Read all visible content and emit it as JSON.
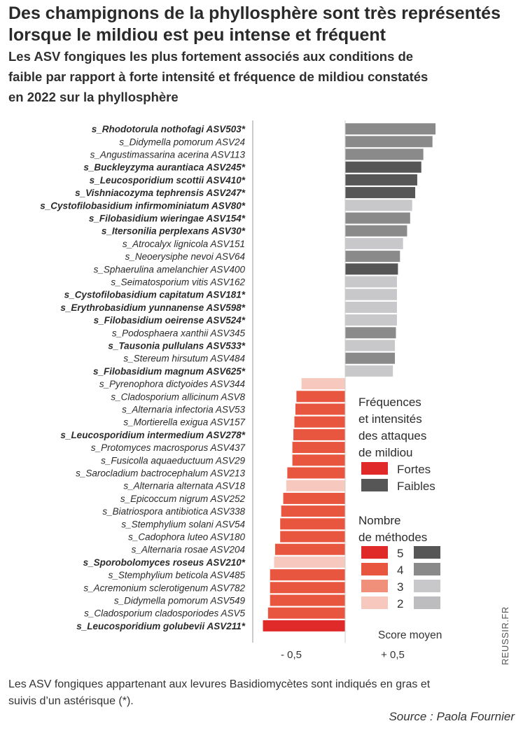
{
  "header": {
    "title": "Des champignons de la phyllosphère sont très représentés lorsque le mildiou est peu intense et fréquent",
    "subtitle": "Les ASV fongiques les plus fortement associés aux conditions de faible par rapport à forte intensité et fréquence de mildiou constatés en 2022 sur la phyllosphère"
  },
  "footer": {
    "note": "Les ASV fongiques appartenant aux levures Basidiomycètes sont indiqués en gras et suivis d’un astérisque (*).",
    "source": "Source : Paola Fournier",
    "credit": "REUSSIR.FR"
  },
  "colors": {
    "fortes": {
      "5": "#e02a2a",
      "4": "#e9563f",
      "3": "#f08f7a",
      "2": "#f7c8bd"
    },
    "faibles": {
      "5": "#565656",
      "4": "#8a8a8a",
      "3": "#c8c8cb",
      "2": "#bdbdc0"
    }
  },
  "chart_data": {
    "type": "bar",
    "orientation": "horizontal",
    "title": "Les ASV fongiques les plus fortement associés aux conditions de faible par rapport à forte intensité et fréquence de mildiou constatés en 2022 sur la phyllosphère",
    "xlabel": "Score moyen",
    "xticks": [
      -0.5,
      0.5
    ],
    "xtick_labels": [
      "- 0,5",
      "+ 0,5"
    ],
    "xlim": [
      -1.0,
      1.05
    ],
    "legend": {
      "title1": "Fréquences et intensités des attaques de mildiou",
      "fortes_label": "Fortes",
      "faibles_label": "Faibles",
      "title2": "Nombre de méthodes",
      "levels": [
        5,
        4,
        3,
        2
      ]
    },
    "items": [
      {
        "label": "s_Rhodotorula nothofagi ASV503*",
        "value": 0.89,
        "group": "faibles",
        "methods": 4,
        "bold": true
      },
      {
        "label": "s_Didymella pomorum ASV24",
        "value": 0.86,
        "group": "faibles",
        "methods": 4,
        "bold": false
      },
      {
        "label": "s_Angustimassarina acerina ASV113",
        "value": 0.77,
        "group": "faibles",
        "methods": 4,
        "bold": false
      },
      {
        "label": "s_Buckleyzyma aurantiaca ASV245*",
        "value": 0.75,
        "group": "faibles",
        "methods": 5,
        "bold": true
      },
      {
        "label": "s_Leucosporidium scottii ASV410*",
        "value": 0.71,
        "group": "faibles",
        "methods": 5,
        "bold": true
      },
      {
        "label": "s_Vishniacozyma tephrensis ASV247*",
        "value": 0.69,
        "group": "faibles",
        "methods": 5,
        "bold": true
      },
      {
        "label": "s_Cystofilobasidium infirmominiatum ASV80*",
        "value": 0.66,
        "group": "faibles",
        "methods": 3,
        "bold": true
      },
      {
        "label": "s_Filobasidium wieringae ASV154*",
        "value": 0.64,
        "group": "faibles",
        "methods": 4,
        "bold": true
      },
      {
        "label": "s_Itersonilia perplexans ASV30*",
        "value": 0.61,
        "group": "faibles",
        "methods": 4,
        "bold": true
      },
      {
        "label": "s_Atrocalyx lignicola ASV151",
        "value": 0.57,
        "group": "faibles",
        "methods": 3,
        "bold": false
      },
      {
        "label": "s_Neoerysiphe nevoi ASV64",
        "value": 0.54,
        "group": "faibles",
        "methods": 4,
        "bold": false
      },
      {
        "label": "s_Sphaerulina amelanchier ASV400",
        "value": 0.52,
        "group": "faibles",
        "methods": 5,
        "bold": false
      },
      {
        "label": "s_Seimatosporium vitis ASV162",
        "value": 0.51,
        "group": "faibles",
        "methods": 3,
        "bold": false
      },
      {
        "label": "s_Cystofilobasidium capitatum ASV181*",
        "value": 0.51,
        "group": "faibles",
        "methods": 3,
        "bold": true
      },
      {
        "label": "s_Erythrobasidium yunnanense ASV598*",
        "value": 0.51,
        "group": "faibles",
        "methods": 3,
        "bold": true
      },
      {
        "label": "s_Filobasidium oeirense ASV524*",
        "value": 0.51,
        "group": "faibles",
        "methods": 3,
        "bold": true
      },
      {
        "label": "s_Podosphaera xanthii ASV345",
        "value": 0.5,
        "group": "faibles",
        "methods": 4,
        "bold": false
      },
      {
        "label": "s_Tausonia pullulans ASV533*",
        "value": 0.49,
        "group": "faibles",
        "methods": 3,
        "bold": true
      },
      {
        "label": "s_Stereum hirsutum ASV484",
        "value": 0.49,
        "group": "faibles",
        "methods": 4,
        "bold": false
      },
      {
        "label": "s_Filobasidium magnum ASV625*",
        "value": 0.47,
        "group": "faibles",
        "methods": 3,
        "bold": true
      },
      {
        "label": "s_Pyrenophora dictyoides ASV344",
        "value": -0.43,
        "group": "fortes",
        "methods": 2,
        "bold": false
      },
      {
        "label": "s_Cladosporium allicinum ASV8",
        "value": -0.48,
        "group": "fortes",
        "methods": 4,
        "bold": false
      },
      {
        "label": "s_Alternaria infectoria ASV53",
        "value": -0.49,
        "group": "fortes",
        "methods": 4,
        "bold": false
      },
      {
        "label": "s_Mortierella exigua ASV157",
        "value": -0.5,
        "group": "fortes",
        "methods": 4,
        "bold": false
      },
      {
        "label": "s_Leucosporidium intermedium ASV278*",
        "value": -0.51,
        "group": "fortes",
        "methods": 4,
        "bold": true
      },
      {
        "label": "s_Protomyces macrosporus ASV437",
        "value": -0.52,
        "group": "fortes",
        "methods": 4,
        "bold": false
      },
      {
        "label": "s_Fusicolla aquaeductuum ASV29",
        "value": -0.52,
        "group": "fortes",
        "methods": 4,
        "bold": false
      },
      {
        "label": "s_Sarocladium bactrocephalum ASV213",
        "value": -0.57,
        "group": "fortes",
        "methods": 4,
        "bold": false
      },
      {
        "label": "s_Alternaria alternata ASV18",
        "value": -0.58,
        "group": "fortes",
        "methods": 2,
        "bold": false
      },
      {
        "label": "s_Epicoccum nigrum ASV252",
        "value": -0.61,
        "group": "fortes",
        "methods": 4,
        "bold": false
      },
      {
        "label": "s_Biatriospora antibiotica ASV338",
        "value": -0.63,
        "group": "fortes",
        "methods": 4,
        "bold": false
      },
      {
        "label": "s_Stemphylium solani ASV54",
        "value": -0.64,
        "group": "fortes",
        "methods": 4,
        "bold": false
      },
      {
        "label": "s_Cadophora luteo ASV180",
        "value": -0.64,
        "group": "fortes",
        "methods": 4,
        "bold": false
      },
      {
        "label": "s_Alternaria rosae ASV204",
        "value": -0.69,
        "group": "fortes",
        "methods": 4,
        "bold": false
      },
      {
        "label": "s_Sporobolomyces roseus ASV210*",
        "value": -0.7,
        "group": "fortes",
        "methods": 2,
        "bold": true
      },
      {
        "label": "s_Stemphylium beticola ASV485",
        "value": -0.74,
        "group": "fortes",
        "methods": 4,
        "bold": false
      },
      {
        "label": "s_Acremonium sclerotigenum ASV782",
        "value": -0.74,
        "group": "fortes",
        "methods": 4,
        "bold": false
      },
      {
        "label": "s_Didymella pomorum ASV549",
        "value": -0.74,
        "group": "fortes",
        "methods": 4,
        "bold": false
      },
      {
        "label": "s_Cladosporium cladosporiodes ASV5",
        "value": -0.76,
        "group": "fortes",
        "methods": 4,
        "bold": false
      },
      {
        "label": "s_Leucosporidium golubevii ASV211*",
        "value": -0.81,
        "group": "fortes",
        "methods": 5,
        "bold": true
      }
    ]
  }
}
